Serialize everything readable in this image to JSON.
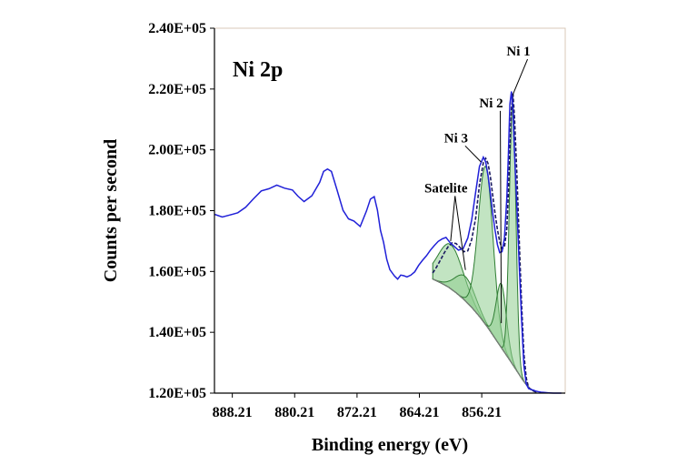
{
  "chart_data": {
    "type": "line",
    "title": "Ni 2p",
    "xlabel": "Binding energy (eV)",
    "ylabel": "Counts per second",
    "x_reversed": true,
    "xlim": [
      890.5,
      845.5
    ],
    "ylim": [
      120000,
      240000
    ],
    "x_ticks": [
      888.21,
      880.21,
      872.21,
      864.21,
      856.21
    ],
    "x_tick_labels": [
      "888.21",
      "880.21",
      "872.21",
      "864.21",
      "856.21"
    ],
    "y_ticks": [
      120000,
      140000,
      160000,
      180000,
      200000,
      220000,
      240000
    ],
    "y_tick_labels": [
      "1.20E+05",
      "1.40E+05",
      "1.60E+05",
      "1.80E+05",
      "2.00E+05",
      "2.20E+05",
      "2.40E+05"
    ],
    "grid": false,
    "colors": {
      "measured": "#2020d8",
      "envelope": "#1a1a60",
      "component_fill": "#8fce8f",
      "component_edge": "#2e7d32"
    },
    "series": [
      {
        "kind": "measured",
        "x": [
          890.5,
          889.5,
          888.5,
          887.5,
          886.5,
          885.5,
          884.5,
          883.5,
          882.5,
          881.5,
          880.5,
          879.8,
          879.0,
          878.0,
          877.0,
          876.5,
          876.0,
          875.5,
          874.8,
          874.0,
          873.3,
          872.6,
          871.8,
          871.0,
          870.5,
          870.0,
          869.6,
          869.2,
          868.8,
          868.4,
          868.0,
          867.4,
          867.0,
          866.6,
          866.2,
          865.8,
          865.3,
          864.8,
          864.3,
          863.8,
          863.3,
          862.8,
          862.3,
          861.8,
          861.3,
          860.8,
          860.3,
          859.8,
          859.2,
          858.6,
          858.0,
          857.5,
          857.0,
          856.5,
          856.0,
          855.7,
          855.4,
          855.1,
          854.8,
          854.5,
          854.2,
          853.9,
          853.6,
          853.3,
          853.0,
          852.8,
          852.6,
          852.4,
          852.2,
          852.0,
          851.7,
          851.4,
          851.1,
          850.8,
          850.5,
          850.2,
          849.9,
          849.6,
          849.3,
          849.0,
          848.6,
          848.2,
          847.6,
          847.0,
          846.5,
          846.0
        ],
        "y": [
          178800,
          177900,
          178600,
          179300,
          181100,
          183900,
          186500,
          187200,
          188400,
          187400,
          186800,
          184800,
          183000,
          184900,
          189300,
          192900,
          193700,
          192900,
          187000,
          180100,
          177300,
          176600,
          174800,
          179900,
          183800,
          184600,
          180200,
          173500,
          169600,
          164000,
          160600,
          158500,
          157500,
          158800,
          158600,
          158200,
          158800,
          159900,
          162000,
          163700,
          165200,
          167000,
          168500,
          169900,
          170700,
          171200,
          169600,
          168400,
          167000,
          167500,
          171000,
          177000,
          186000,
          194500,
          197600,
          196000,
          191500,
          185500,
          179000,
          173500,
          168800,
          166200,
          166500,
          171000,
          184000,
          198000,
          215000,
          219200,
          213000,
          199000,
          181000,
          162000,
          144000,
          129000,
          123000,
          121500,
          121200,
          121000,
          120700,
          120500,
          120300,
          120200,
          120100,
          120000,
          120000,
          120000
        ]
      },
      {
        "kind": "envelope",
        "x": [
          862.5,
          862.0,
          861.5,
          861.0,
          860.5,
          860.0,
          859.5,
          859.0,
          858.5,
          858.0,
          857.5,
          857.0,
          856.5,
          856.0,
          855.7,
          855.4,
          855.1,
          854.8,
          854.5,
          854.2,
          853.9,
          853.6,
          853.3,
          853.0,
          852.8,
          852.6,
          852.4,
          852.2,
          852.0,
          851.7,
          851.4,
          851.1,
          850.8,
          850.5,
          850.2,
          849.8,
          849.4,
          849.0
        ],
        "y": [
          159500,
          161500,
          163800,
          166200,
          168200,
          169400,
          169200,
          167900,
          166500,
          166800,
          170500,
          177500,
          188500,
          195800,
          197200,
          195500,
          191000,
          185000,
          179000,
          173800,
          169800,
          167500,
          168000,
          174000,
          185500,
          200000,
          213500,
          218500,
          210500,
          192000,
          170000,
          149000,
          133000,
          125000,
          121800,
          121000,
          120500,
          120200
        ]
      },
      {
        "kind": "background",
        "x": [
          862.5,
          861.5,
          860.5,
          859.5,
          858.5,
          857.5,
          856.5,
          855.5,
          854.5,
          853.5,
          852.5,
          851.5,
          851.0,
          850.5,
          850.0,
          849.6,
          849.2
        ],
        "y": [
          157500,
          156300,
          154900,
          153000,
          150800,
          148200,
          145200,
          141800,
          138000,
          134200,
          130400,
          126500,
          124500,
          122800,
          121500,
          120700,
          120200
        ]
      },
      {
        "kind": "component",
        "name": "Satelite",
        "center": 860.2,
        "amplitude": 14500,
        "width": 1.6
      },
      {
        "kind": "component",
        "name": "Satelite",
        "center": 858.3,
        "amplitude": 8000,
        "width": 1.3
      },
      {
        "kind": "component",
        "name": "Ni 3",
        "center": 855.7,
        "amplitude": 52000,
        "width": 0.95
      },
      {
        "kind": "component",
        "name": "Ni 2",
        "center": 853.7,
        "amplitude": 21000,
        "width": 0.65
      },
      {
        "kind": "component",
        "name": "Ni 1",
        "center": 852.25,
        "amplitude": 86000,
        "width": 0.42
      }
    ],
    "annotations": [
      {
        "text": "Ni 1",
        "x": 851.5,
        "y": 231000,
        "points_to": [
          852.25,
          218000
        ]
      },
      {
        "text": "Ni 2",
        "x": 855.0,
        "y": 214000,
        "points_to": [
          853.7,
          143000
        ]
      },
      {
        "text": "Ni 3",
        "x": 859.5,
        "y": 202500,
        "points_to": [
          856.3,
          196000
        ]
      },
      {
        "text": "Satelite",
        "x": 860.8,
        "y": 186000,
        "points_to": [
          [
            860.2,
            170000
          ],
          [
            858.3,
            160500
          ]
        ]
      }
    ]
  }
}
